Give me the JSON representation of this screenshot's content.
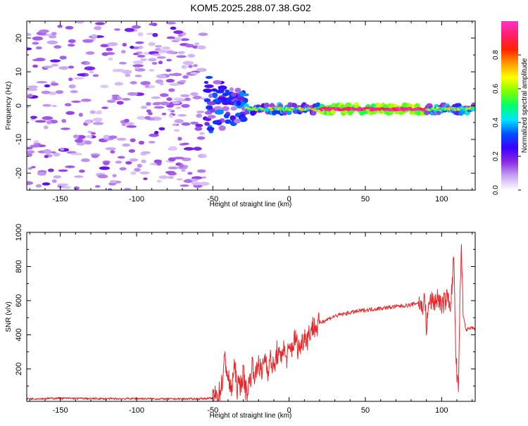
{
  "title": "KOM5.2025.288.07.38.G02",
  "chart_data": [
    {
      "type": "heatmap",
      "title": "KOM5.2025.288.07.38.G02",
      "xlabel": "Height of straight line (km)",
      "ylabel": "Frequency (Hz)",
      "xlim": [
        -172,
        122
      ],
      "ylim": [
        -25,
        25
      ],
      "xticks": [
        -150,
        -100,
        -50,
        0,
        50,
        100
      ],
      "yticks": [
        -20,
        -10,
        0,
        10,
        20
      ],
      "colorbar": {
        "label": "Normalized spectral amplitude",
        "range": [
          0,
          1
        ],
        "ticks": [
          0.0,
          0.2,
          0.4,
          0.6,
          0.8
        ],
        "colors": [
          "#ffffff",
          "#c9a5f3",
          "#8a2be2",
          "#3b00ff",
          "#0050ff",
          "#00e5ff",
          "#00ff6a",
          "#7fff00",
          "#ffff00",
          "#ff9900",
          "#ff2200",
          "#ff1f6b",
          "#ff33cc"
        ]
      },
      "features": [
        {
          "name": "noise",
          "x_range": [
            -172,
            -55
          ],
          "frequency_range": [
            -25,
            25
          ],
          "amplitude": "low (0.05-0.15)"
        },
        {
          "name": "signal-onset",
          "x_range": [
            -55,
            -28
          ],
          "frequency_range": [
            -9,
            9
          ],
          "amplitude": "0.15-0.35"
        },
        {
          "name": "doppler-line",
          "x_range": [
            -28,
            122
          ],
          "frequency": -1,
          "amplitude": "0.3-1.0",
          "peak_x_range": [
            20,
            90
          ]
        }
      ]
    },
    {
      "type": "line",
      "xlabel": "Height of straight line (km)",
      "ylabel": "SNR (v/v)",
      "xlim": [
        -172,
        122
      ],
      "ylim": [
        10,
        1000
      ],
      "xticks": [
        -150,
        -100,
        -50,
        0,
        50,
        100
      ],
      "yticks": [
        200,
        400,
        600,
        800,
        1000
      ],
      "series": [
        {
          "name": "SNR",
          "color": "#e8262a",
          "x": [
            -172,
            -150,
            -120,
            -100,
            -80,
            -60,
            -50,
            -46,
            -44,
            -42,
            -40,
            -38,
            -36,
            -34,
            -32,
            -30,
            -28,
            -26,
            -24,
            -22,
            -20,
            -18,
            -16,
            -14,
            -12,
            -10,
            -8,
            -6,
            -4,
            -2,
            0,
            2,
            4,
            6,
            8,
            10,
            12,
            14,
            16,
            18,
            20,
            25,
            30,
            40,
            50,
            60,
            70,
            80,
            85,
            87,
            89,
            90,
            92,
            95,
            98,
            100,
            102,
            104,
            106,
            107,
            108,
            109,
            110,
            111,
            112,
            113,
            114,
            116,
            118,
            120,
            122
          ],
          "values": [
            25,
            28,
            25,
            26,
            24,
            25,
            28,
            50,
            120,
            260,
            150,
            60,
            220,
            90,
            110,
            170,
            60,
            120,
            230,
            150,
            250,
            160,
            280,
            200,
            260,
            190,
            300,
            250,
            330,
            260,
            300,
            330,
            380,
            320,
            340,
            400,
            380,
            430,
            450,
            440,
            470,
            490,
            510,
            530,
            545,
            555,
            565,
            575,
            590,
            560,
            610,
            440,
            600,
            590,
            620,
            560,
            600,
            620,
            580,
            700,
            880,
            380,
            150,
            60,
            600,
            950,
            520,
            430,
            435,
            440,
            435
          ]
        }
      ]
    }
  ]
}
